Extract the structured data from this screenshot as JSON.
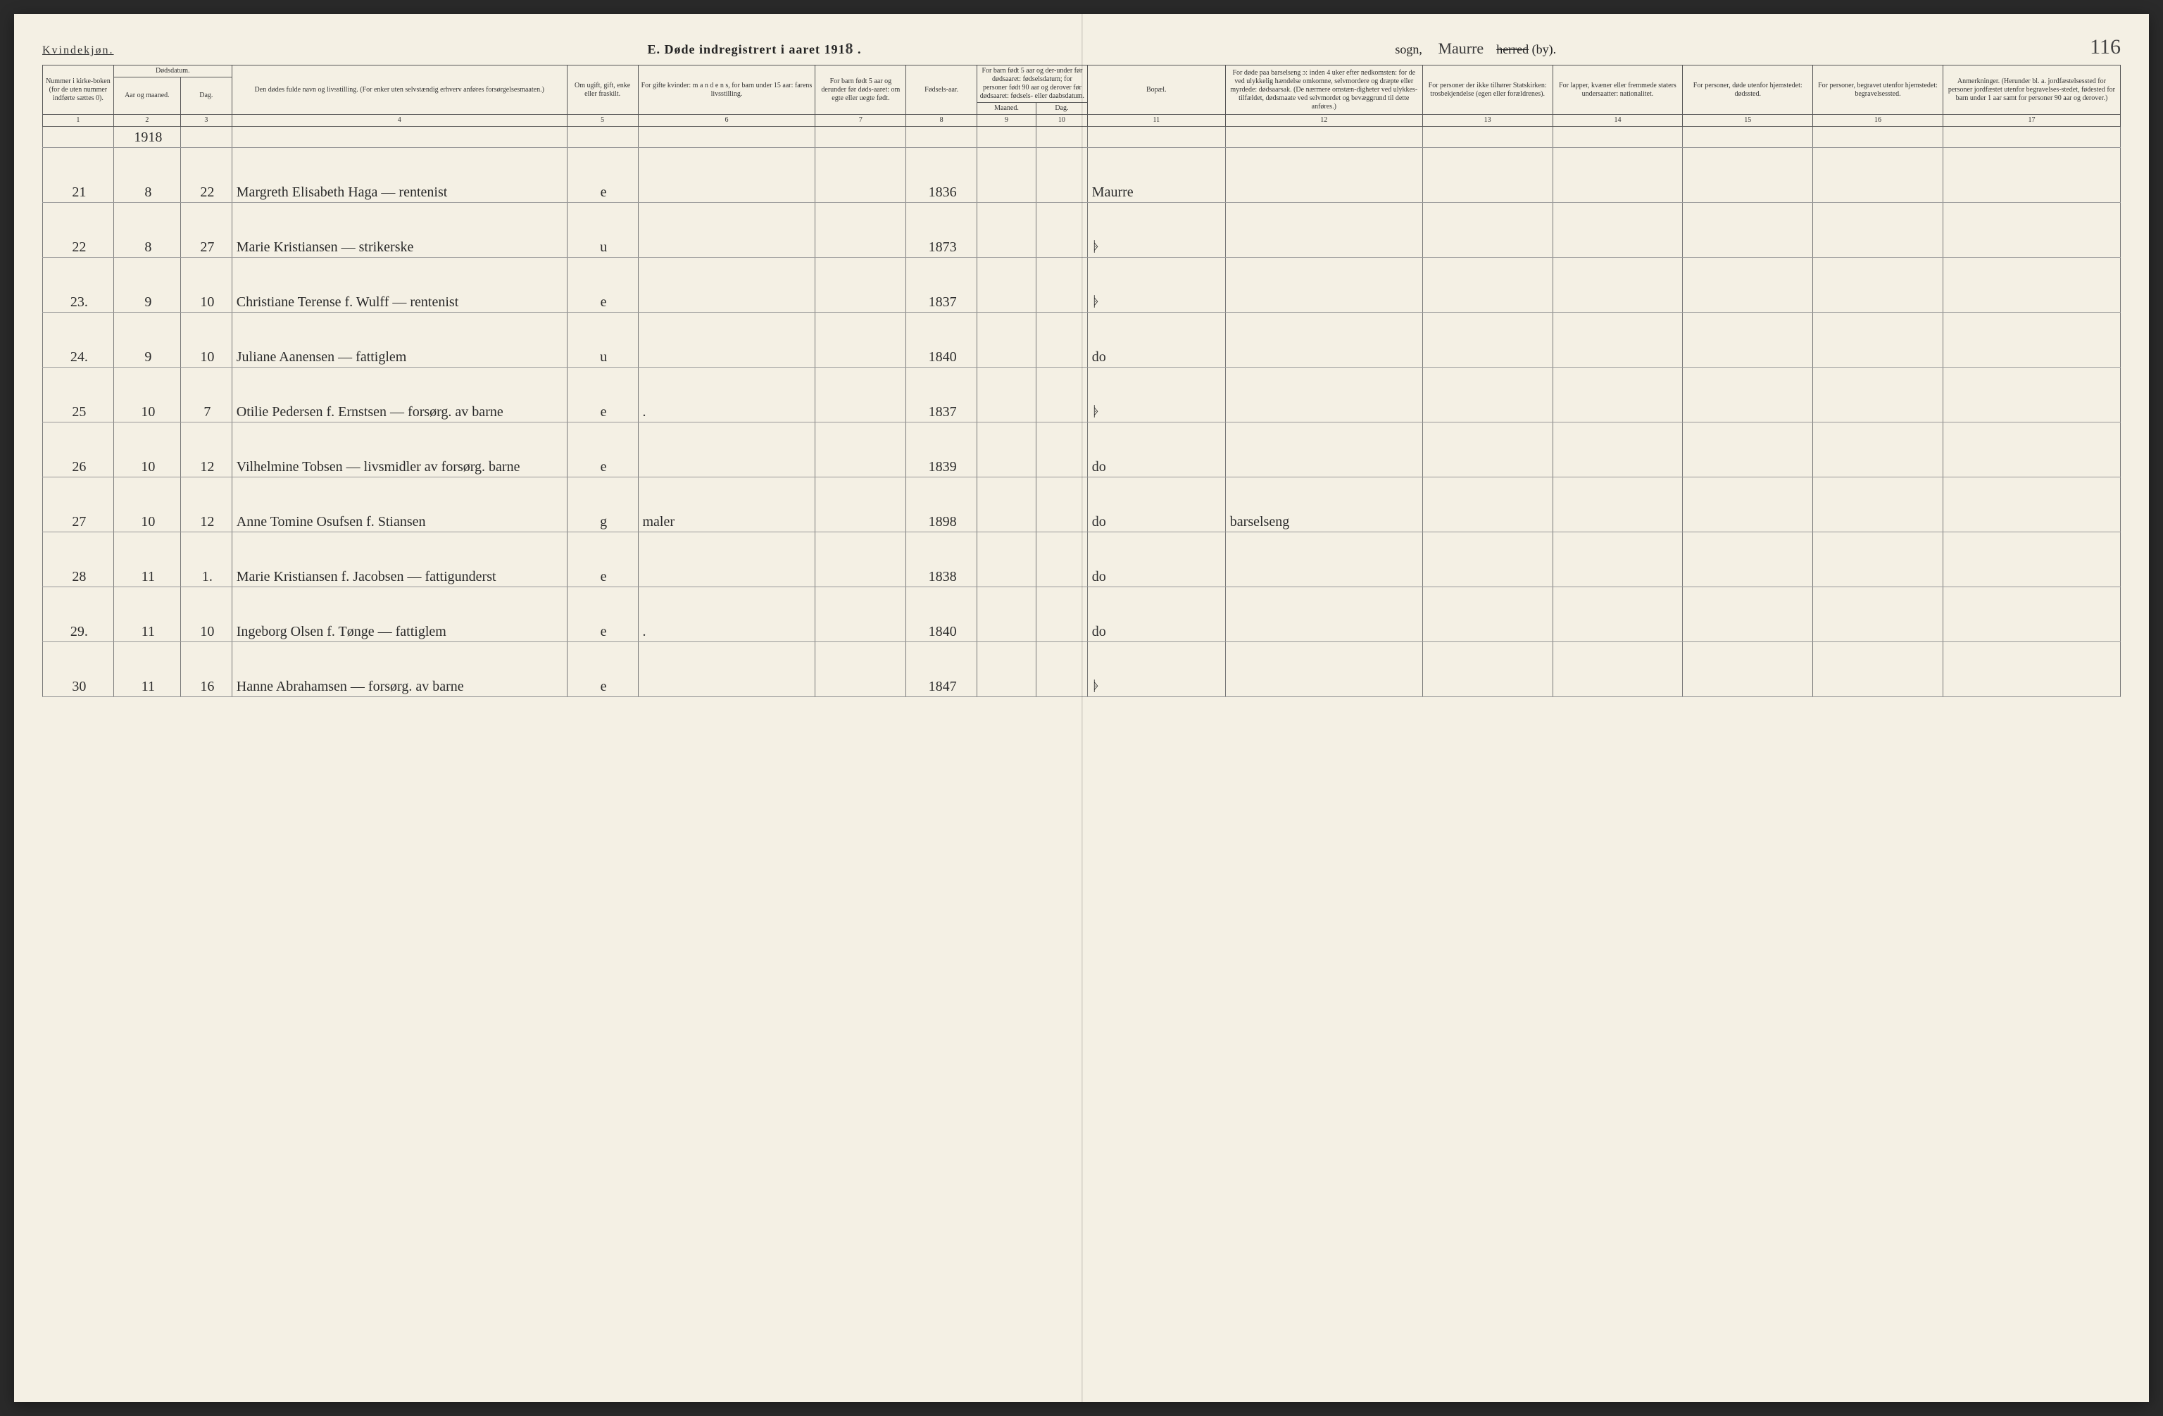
{
  "header": {
    "corner": "Kvindekjøn.",
    "title_prefix": "E.  Døde indregistrert i aaret 191",
    "title_year_digit": "8",
    "sogn_label": "sogn,",
    "sogn_written": "Maurre",
    "herred_struck": "herred",
    "herred_suffix": "(by).",
    "page_number": "116"
  },
  "columns": {
    "c1": "Nummer i kirke-boken (for de uten nummer indførte sættes 0).",
    "c2_group": "Dødsdatum.",
    "c2": "Aar og maaned.",
    "c3": "Dag.",
    "c4": "Den dødes fulde navn og livsstilling. (For enker uten selvstændig erhverv anføres forsørgelsesmaaten.)",
    "c5": "Om ugift, gift, enke eller fraskilt.",
    "c6": "For gifte kvinder: m a n d e n s, for barn under 15 aar: farens livsstilling.",
    "c7": "For barn født 5 aar og derunder før døds-aaret: om egte eller uegte født.",
    "c8": "Fødsels-aar.",
    "c9_10": "For barn født 5 aar og der-under før dødsaaret: fødselsdatum; for personer født 90 aar og derover før dødsaaret: fødsels- eller daabsdatum.",
    "c9": "Maaned.",
    "c10": "Dag.",
    "c11": "Bopæl.",
    "c12": "For døde paa barselseng ɔ: inden 4 uker efter nedkomsten: for de ved ulykkelig hændelse omkomne, selvmordere og dræpte eller myrdede: dødsaarsak. (De nærmere omstæn-digheter ved ulykkes-tilfældet, dødsmaate ved selvmordet og bevæggrund til dette anføres.)",
    "c13": "For personer der ikke tilhører Statskirken: trosbekjendelse (egen eller forældrenes).",
    "c14": "For lapper, kvæner eller fremmede staters undersaatter: nationalitet.",
    "c15": "For personer, døde utenfor hjemstedet: dødssted.",
    "c16": "For personer, begravet utenfor hjemstedet: begravelsessted.",
    "c17": "Anmerkninger. (Herunder bl. a. jordfæstelsessted for personer jordfæstet utenfor begravelses-stedet, fødested for barn under 1 aar samt for personer 90 aar og derover.)"
  },
  "colnums": [
    "1",
    "2",
    "3",
    "4",
    "5",
    "6",
    "7",
    "8",
    "9",
    "10",
    "11",
    "12",
    "13",
    "14",
    "15",
    "16",
    "17"
  ],
  "year_row": "1918",
  "rows": [
    {
      "n": "21",
      "m": "8",
      "d": "22",
      "name": "Margreth Elisabeth Haga — rentenist",
      "stat": "e",
      "c6": "",
      "c7": "",
      "yr": "1836",
      "c9": "",
      "c10": "",
      "bop": "Maurre",
      "c12": "",
      "c13": "",
      "c14": "",
      "c15": "",
      "c16": "",
      "c17": ""
    },
    {
      "n": "22",
      "m": "8",
      "d": "27",
      "name": "Marie Kristiansen — strikerske",
      "stat": "u",
      "c6": "",
      "c7": "",
      "yr": "1873",
      "c9": "",
      "c10": "",
      "bop": "ᚧ",
      "c12": "",
      "c13": "",
      "c14": "",
      "c15": "",
      "c16": "",
      "c17": ""
    },
    {
      "n": "23.",
      "m": "9",
      "d": "10",
      "name": "Christiane Terense f. Wulff — rentenist",
      "stat": "e",
      "c6": "",
      "c7": "",
      "yr": "1837",
      "c9": "",
      "c10": "",
      "bop": "ᚧ",
      "c12": "",
      "c13": "",
      "c14": "",
      "c15": "",
      "c16": "",
      "c17": ""
    },
    {
      "n": "24.",
      "m": "9",
      "d": "10",
      "name": "Juliane Aanensen — fattiglem",
      "stat": "u",
      "c6": "",
      "c7": "",
      "yr": "1840",
      "c9": "",
      "c10": "",
      "bop": "do",
      "c12": "",
      "c13": "",
      "c14": "",
      "c15": "",
      "c16": "",
      "c17": ""
    },
    {
      "n": "25",
      "m": "10",
      "d": "7",
      "name": "Otilie Pedersen f. Ernstsen — forsørg. av barne",
      "stat": "e",
      "c6": ".",
      "c7": "",
      "yr": "1837",
      "c9": "",
      "c10": "",
      "bop": "ᚧ",
      "c12": "",
      "c13": "",
      "c14": "",
      "c15": "",
      "c16": "",
      "c17": ""
    },
    {
      "n": "26",
      "m": "10",
      "d": "12",
      "name": "Vilhelmine Tobsen — livsmidler av forsørg. barne",
      "stat": "e",
      "c6": "",
      "c7": "",
      "yr": "1839",
      "c9": "",
      "c10": "",
      "bop": "do",
      "c12": "",
      "c13": "",
      "c14": "",
      "c15": "",
      "c16": "",
      "c17": ""
    },
    {
      "n": "27",
      "m": "10",
      "d": "12",
      "name": "Anne Tomine Osufsen f. Stiansen",
      "stat": "g",
      "c6": "maler",
      "c7": "",
      "yr": "1898",
      "c9": "",
      "c10": "",
      "bop": "do",
      "c12": "barselseng",
      "c13": "",
      "c14": "",
      "c15": "",
      "c16": "",
      "c17": ""
    },
    {
      "n": "28",
      "m": "11",
      "d": "1.",
      "name": "Marie Kristiansen f. Jacobsen — fattigunderst",
      "stat": "e",
      "c6": "",
      "c7": "",
      "yr": "1838",
      "c9": "",
      "c10": "",
      "bop": "do",
      "c12": "",
      "c13": "",
      "c14": "",
      "c15": "",
      "c16": "",
      "c17": ""
    },
    {
      "n": "29.",
      "m": "11",
      "d": "10",
      "name": "Ingeborg Olsen f. Tønge — fattiglem",
      "stat": "e",
      "c6": ".",
      "c7": "",
      "yr": "1840",
      "c9": "",
      "c10": "",
      "bop": "do",
      "c12": "",
      "c13": "",
      "c14": "",
      "c15": "",
      "c16": "",
      "c17": ""
    },
    {
      "n": "30",
      "m": "11",
      "d": "16",
      "name": "Hanne Abrahamsen — forsørg. av barne",
      "stat": "e",
      "c6": "",
      "c7": "",
      "yr": "1847",
      "c9": "",
      "c10": "",
      "bop": "ᚧ",
      "c12": "",
      "c13": "",
      "c14": "",
      "c15": "",
      "c16": "",
      "c17": ""
    }
  ],
  "widths_pct": [
    3.6,
    3.4,
    2.6,
    17.0,
    3.6,
    9.0,
    4.6,
    3.6,
    3.0,
    2.6,
    7.0,
    10.0,
    6.6,
    6.6,
    6.6,
    6.6,
    9.0
  ],
  "colors": {
    "paper": "#f4f0e4",
    "ink_print": "#333333",
    "ink_hand": "#2b2b2b",
    "rule_heavy": "#222222",
    "rule_light": "#999999"
  }
}
